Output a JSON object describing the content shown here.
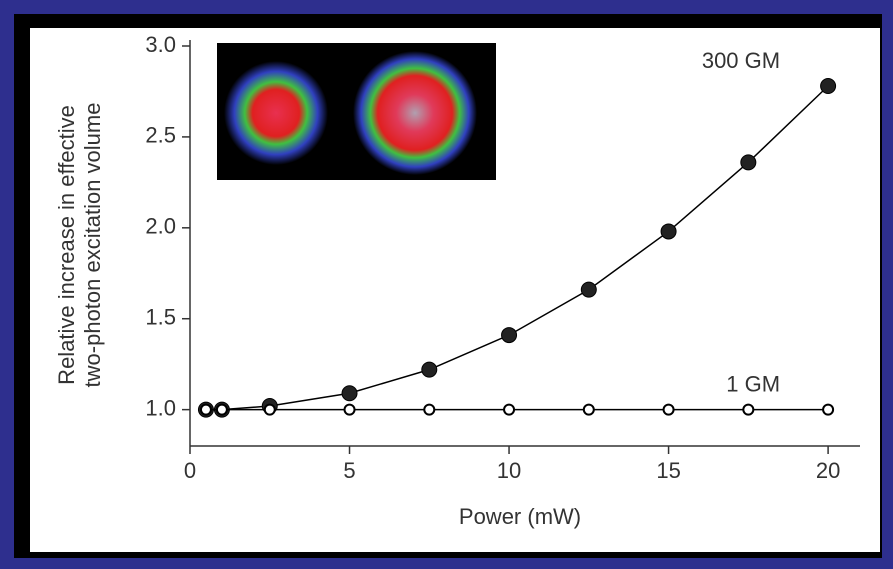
{
  "chart_data": {
    "type": "line",
    "xlabel": "Power (mW)",
    "ylabel": [
      "Relative increase in effective",
      "two-photon excitation volume"
    ],
    "x": [
      0.5,
      1,
      2.5,
      5,
      7.5,
      10,
      12.5,
      15,
      17.5,
      20
    ],
    "series": [
      {
        "name": "300 GM",
        "color": "#000000",
        "marker": "filled",
        "values": [
          1.0,
          1.0,
          1.02,
          1.09,
          1.22,
          1.41,
          1.66,
          1.98,
          2.36,
          2.78
        ]
      },
      {
        "name": "1 GM",
        "color": "#000000",
        "marker": "open",
        "values": [
          1.0,
          1.0,
          1.0,
          1.0,
          1.0,
          1.0,
          1.0,
          1.0,
          1.0,
          1.0
        ]
      }
    ],
    "xlim": [
      0,
      21
    ],
    "xticks": [
      0,
      5,
      10,
      15,
      20
    ],
    "ylim": [
      0.8,
      3.0
    ],
    "yticks": [
      {
        "value": 1,
        "label": "1.0"
      },
      1.5,
      {
        "value": 2,
        "label": "2.0"
      },
      2.5,
      {
        "value": 3,
        "label": "3.0"
      }
    ],
    "grid": false
  }
}
